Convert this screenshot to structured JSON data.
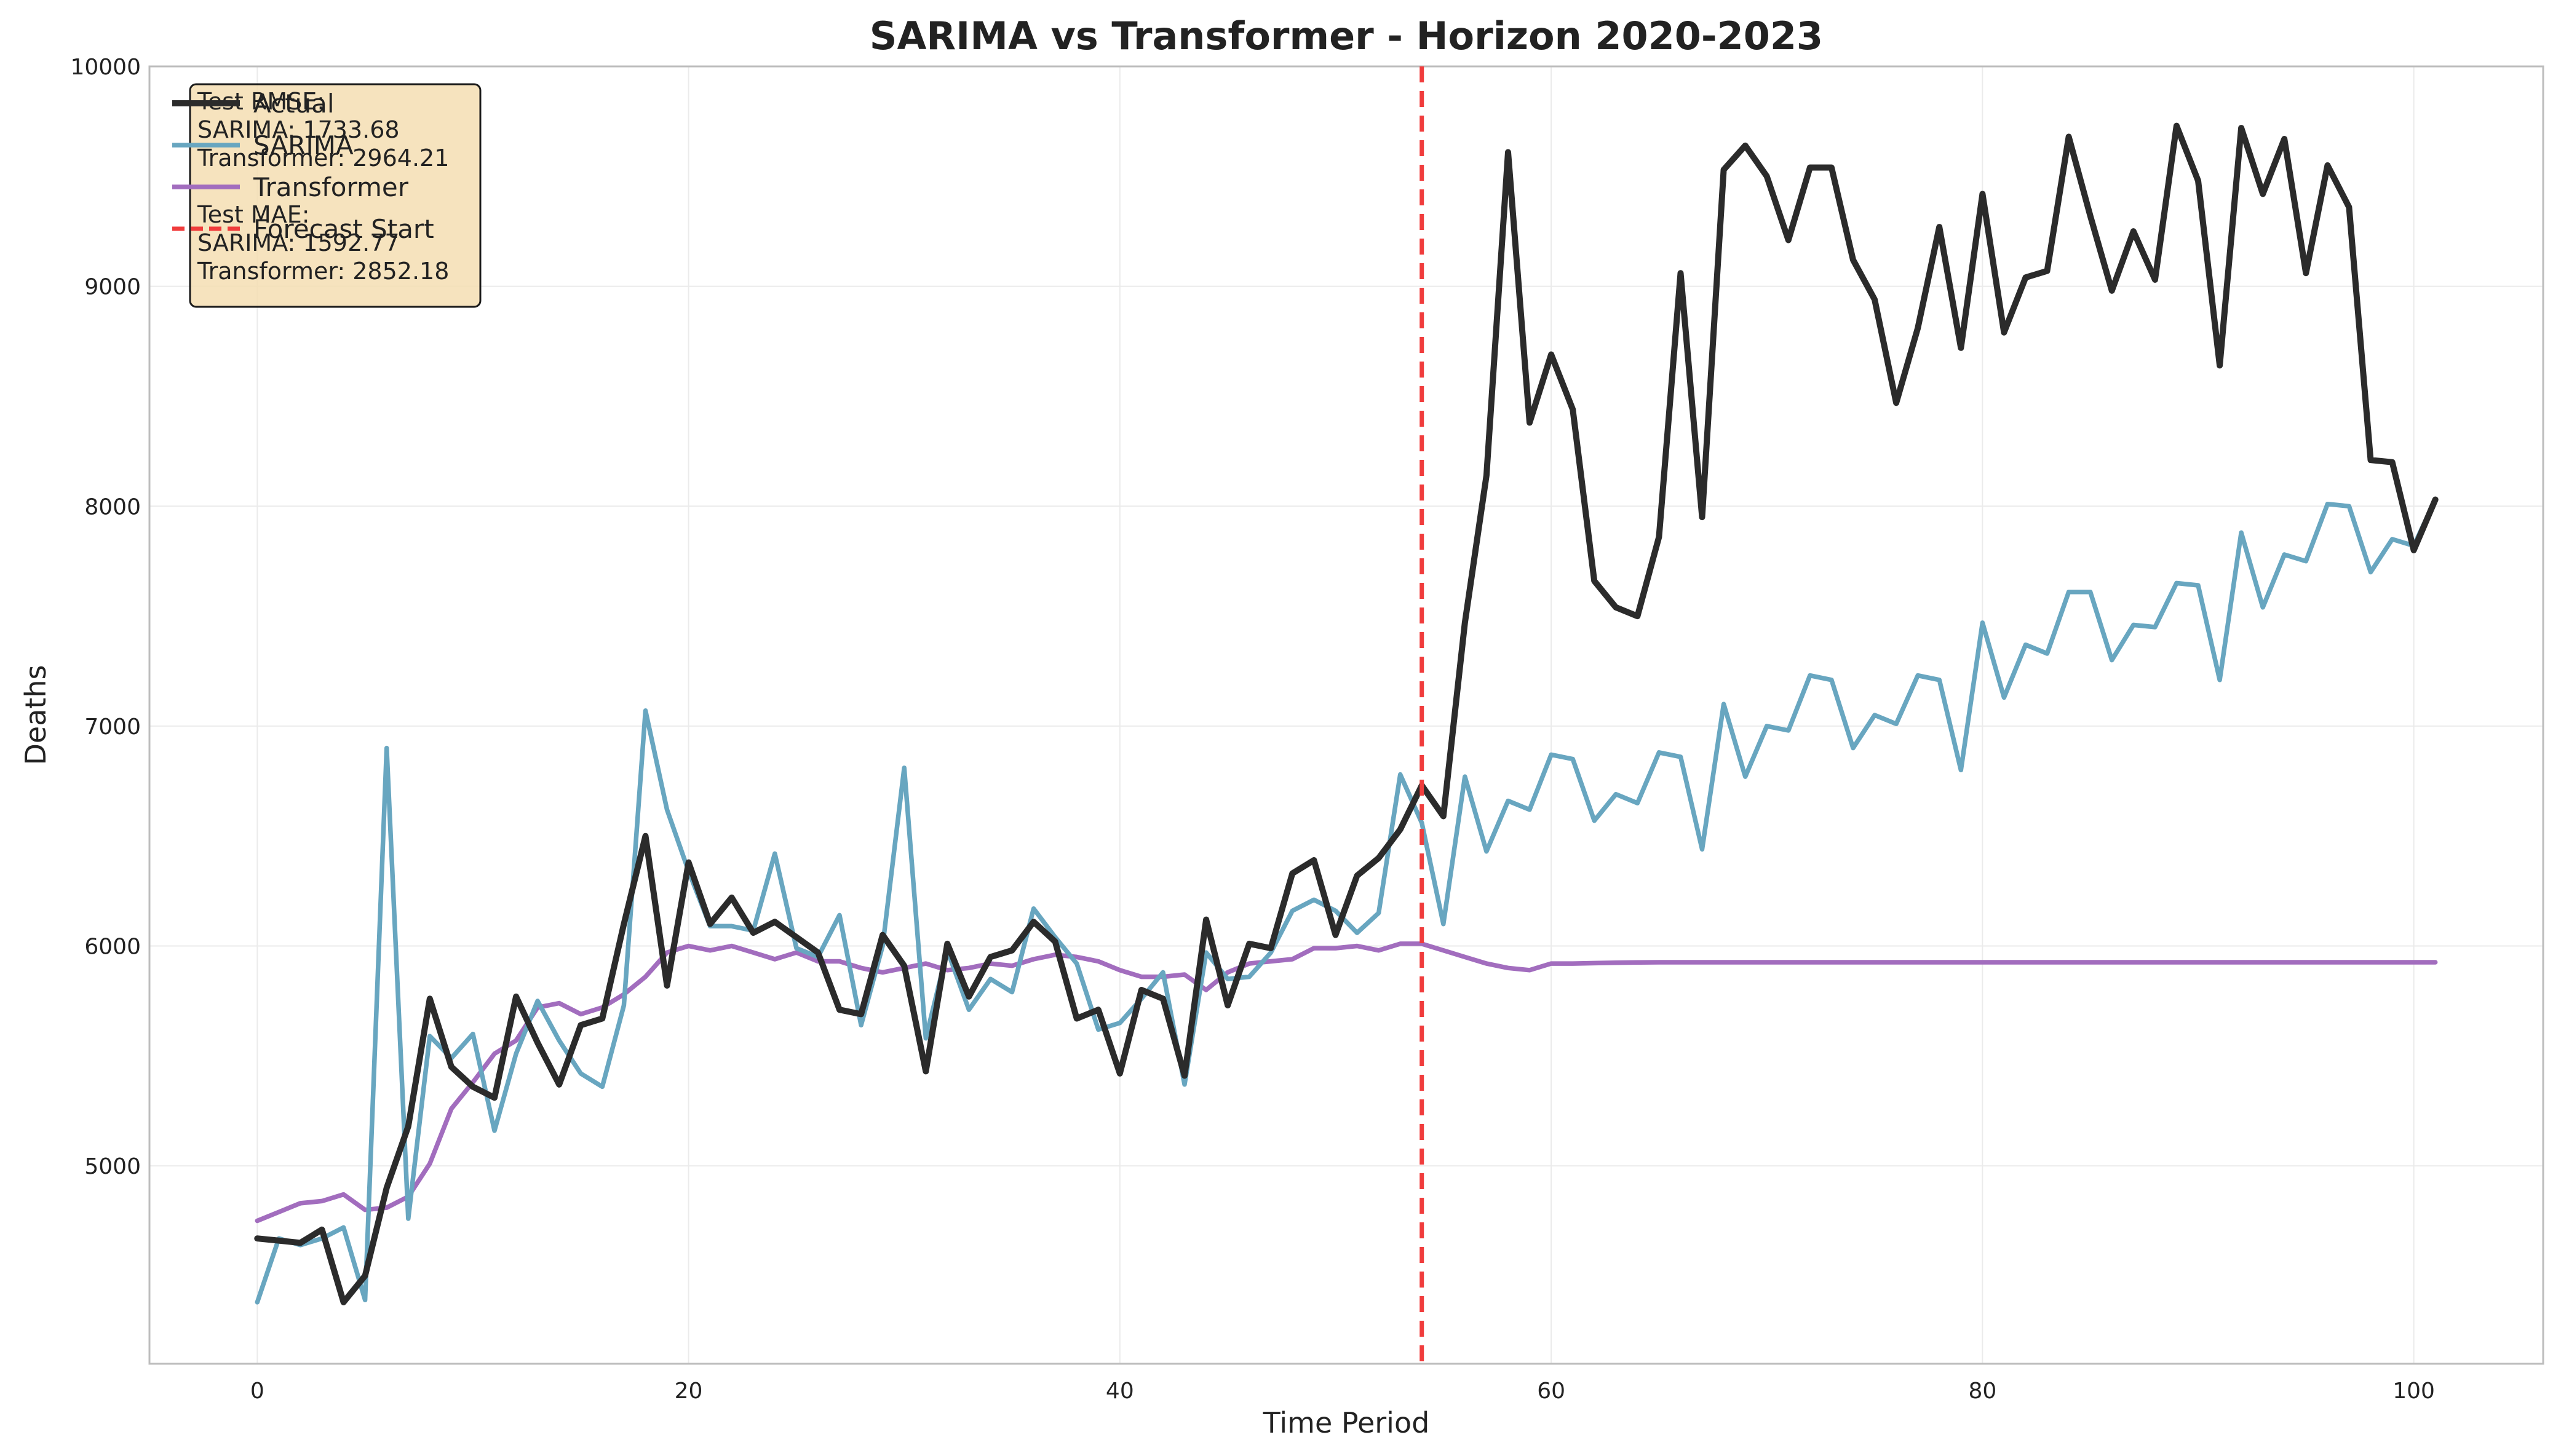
{
  "chart_data": {
    "type": "line",
    "title": "SARIMA vs Transformer - Horizon 2020-2023",
    "xlabel": "Time Period",
    "ylabel": "Deaths",
    "xlim": [
      -5,
      106
    ],
    "ylim": [
      4100,
      10000
    ],
    "xticks": [
      0,
      20,
      40,
      60,
      80,
      100
    ],
    "yticks": [
      5000,
      6000,
      7000,
      8000,
      9000,
      10000
    ],
    "grid": true,
    "legend_position": "top-left",
    "forecast_start": {
      "name": "Forecast Start",
      "x": 54,
      "color": "#f03c3c"
    },
    "metrics": [
      "Test RMSE:",
      "SARIMA: 1733.68",
      "Transformer: 2964.21",
      "",
      "Test MAE:",
      "SARIMA: 1592.77",
      "Transformer: 2852.18"
    ],
    "series": [
      {
        "name": "Actual",
        "color": "#2b2b2b",
        "values": [
          4670,
          4660,
          4650,
          4710,
          4380,
          4500,
          4900,
          5180,
          5760,
          5450,
          5360,
          5310,
          5770,
          5560,
          5370,
          5640,
          5670,
          6100,
          6500,
          5820,
          6380,
          6100,
          6220,
          6060,
          6110,
          6040,
          5970,
          5710,
          5690,
          6050,
          5910,
          5430,
          6010,
          5770,
          5950,
          5980,
          6110,
          6020,
          5670,
          5710,
          5420,
          5800,
          5760,
          5410,
          6120,
          5730,
          6010,
          5990,
          6330,
          6390,
          6050,
          6320,
          6400,
          6530,
          6730,
          6590,
          7470,
          8140,
          9610,
          8380,
          8690,
          8440,
          7660,
          7540,
          7500,
          7860,
          9060,
          7950,
          9530,
          9640,
          9500,
          9210,
          9540,
          9540,
          9120,
          8940,
          8470,
          8810,
          9270,
          8720,
          9420,
          8790,
          9040,
          9070,
          9680,
          9320,
          8980,
          9250,
          9030,
          9730,
          9480,
          8640,
          9720,
          9420,
          9670,
          9060,
          9550,
          9360,
          8210,
          8200,
          7800,
          8030
        ]
      },
      {
        "name": "SARIMA",
        "color": "#68a6c0",
        "values": [
          4380,
          4670,
          4640,
          4670,
          4720,
          4390,
          6900,
          4760,
          5590,
          5490,
          5600,
          5160,
          5510,
          5750,
          5570,
          5420,
          5360,
          5730,
          7070,
          6620,
          6340,
          6090,
          6090,
          6070,
          6420,
          5990,
          5950,
          6140,
          5640,
          6000,
          6810,
          5580,
          5980,
          5710,
          5850,
          5790,
          6170,
          6040,
          5920,
          5620,
          5650,
          5760,
          5880,
          5370,
          5970,
          5850,
          5860,
          5970,
          6160,
          6210,
          6160,
          6060,
          6150,
          6780,
          6560,
          6100,
          6770,
          6430,
          6660,
          6620,
          6870,
          6850,
          6570,
          6690,
          6650,
          6880,
          6860,
          6440,
          7100,
          6770,
          7000,
          6980,
          7230,
          7210,
          6900,
          7050,
          7010,
          7230,
          7210,
          6800,
          7470,
          7130,
          7370,
          7330,
          7610,
          7610,
          7300,
          7460,
          7450,
          7650,
          7640,
          7210,
          7880,
          7540,
          7780,
          7750,
          8010,
          8000,
          7700,
          7850,
          7820,
          8030
        ]
      },
      {
        "name": "Transformer",
        "color": "#a26dbe",
        "values": [
          4750,
          4790,
          4830,
          4840,
          4870,
          4800,
          4810,
          4860,
          5010,
          5260,
          5380,
          5510,
          5570,
          5720,
          5740,
          5690,
          5720,
          5780,
          5860,
          5970,
          6000,
          5980,
          6000,
          5970,
          5940,
          5970,
          5930,
          5930,
          5900,
          5880,
          5900,
          5920,
          5890,
          5900,
          5920,
          5910,
          5940,
          5960,
          5950,
          5930,
          5890,
          5860,
          5860,
          5870,
          5800,
          5880,
          5920,
          5930,
          5940,
          5990,
          5990,
          6000,
          5980,
          6010,
          6010,
          5980,
          5950,
          5920,
          5900,
          5890,
          5920,
          5920,
          5922,
          5924,
          5925,
          5926,
          5926,
          5926,
          5926,
          5926,
          5926,
          5926,
          5926,
          5926,
          5926,
          5926,
          5926,
          5926,
          5926,
          5926,
          5926,
          5926,
          5926,
          5926,
          5926,
          5926,
          5926,
          5926,
          5926,
          5926,
          5926,
          5926,
          5926,
          5926,
          5926,
          5926,
          5926,
          5926,
          5926,
          5926,
          5926,
          5926
        ]
      }
    ]
  }
}
